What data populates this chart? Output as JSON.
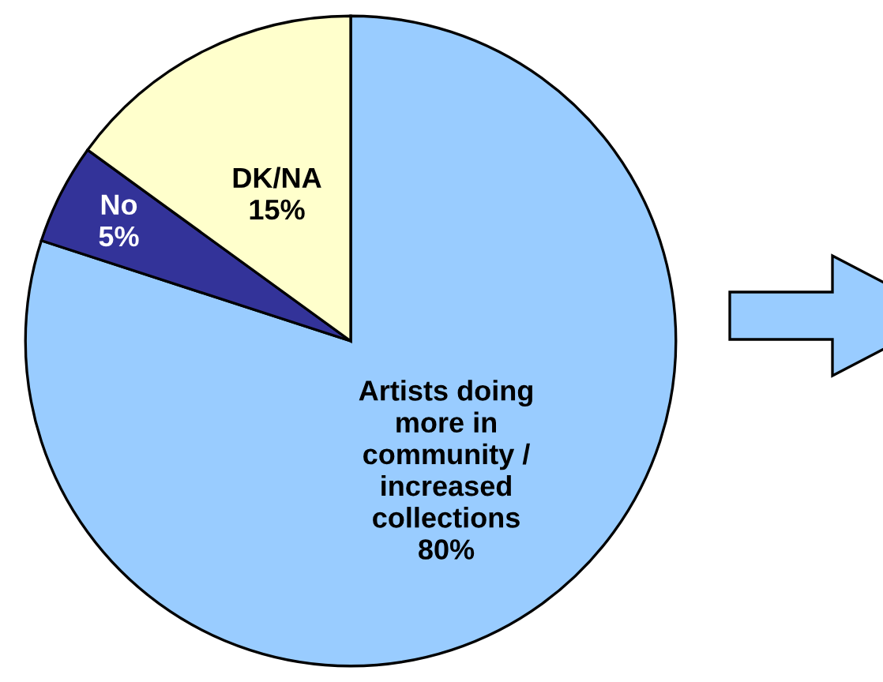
{
  "chart_data": {
    "type": "pie",
    "categories": [
      "Artists doing\nmore in\ncommunity /\nincreased\ncollections",
      "No",
      "DK/NA"
    ],
    "values": [
      80,
      5,
      15
    ],
    "colors": [
      "#99ccff",
      "#333399",
      "#ffffcc"
    ],
    "value_labels": [
      "80%",
      "5%",
      "15%"
    ]
  }
}
